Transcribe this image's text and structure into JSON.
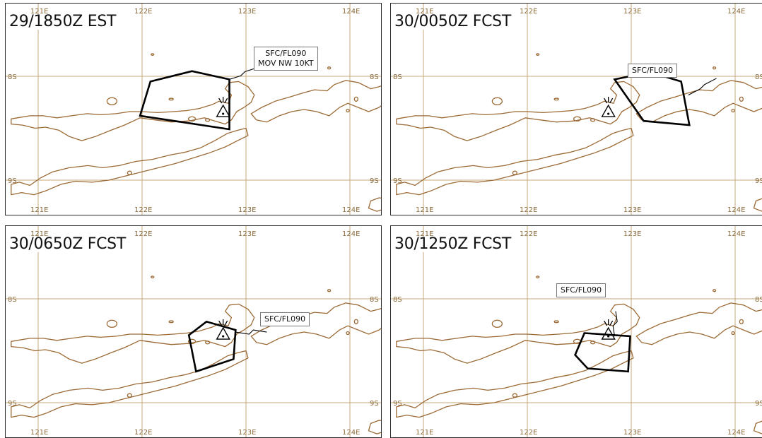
{
  "panels": [
    {
      "title": "29/1850Z EST",
      "callout": [
        "SFC/FL090",
        "MOV NW 10KT"
      ]
    },
    {
      "title": "30/0050Z FCST",
      "callout": [
        "SFC/FL090"
      ]
    },
    {
      "title": "30/0650Z FCST",
      "callout": [
        "SFC/FL090"
      ]
    },
    {
      "title": "30/1250Z FCST",
      "callout": [
        "SFC/FL090"
      ]
    }
  ],
  "grid_labels": {
    "lon_top": [
      "121E",
      "122E",
      "123E",
      "124E"
    ],
    "lon_bottom": [
      "121E",
      "122E",
      "123E",
      "124E"
    ],
    "lat_left": [
      "8S",
      "9S"
    ],
    "lat_right": [
      "8S",
      "9S"
    ]
  },
  "map_extent": {
    "lon_min": 120.74,
    "lon_max": 124.36,
    "lat_north": 7.5,
    "lat_south": 9.45
  },
  "ash_polygons": [
    [
      [
        122.08,
        8.05
      ],
      [
        122.48,
        7.95
      ],
      [
        122.84,
        8.03
      ],
      [
        122.84,
        8.51
      ],
      [
        121.98,
        8.38
      ]
    ],
    [
      [
        122.84,
        8.03
      ],
      [
        123.18,
        7.96
      ],
      [
        123.48,
        8.05
      ],
      [
        123.56,
        8.47
      ],
      [
        123.12,
        8.43
      ]
    ],
    [
      [
        122.45,
        8.35
      ],
      [
        122.62,
        8.22
      ],
      [
        122.9,
        8.3
      ],
      [
        122.88,
        8.58
      ],
      [
        122.52,
        8.7
      ]
    ],
    [
      [
        122.55,
        8.33
      ],
      [
        122.99,
        8.36
      ],
      [
        122.97,
        8.7
      ],
      [
        122.58,
        8.67
      ],
      [
        122.46,
        8.54
      ]
    ]
  ],
  "volcano": {
    "name": "volcano-icon",
    "lon": 122.78,
    "lat": 8.32
  },
  "colors": {
    "coast": "#9c6a35",
    "grid": "#c7a97b",
    "ash": "#000000"
  }
}
